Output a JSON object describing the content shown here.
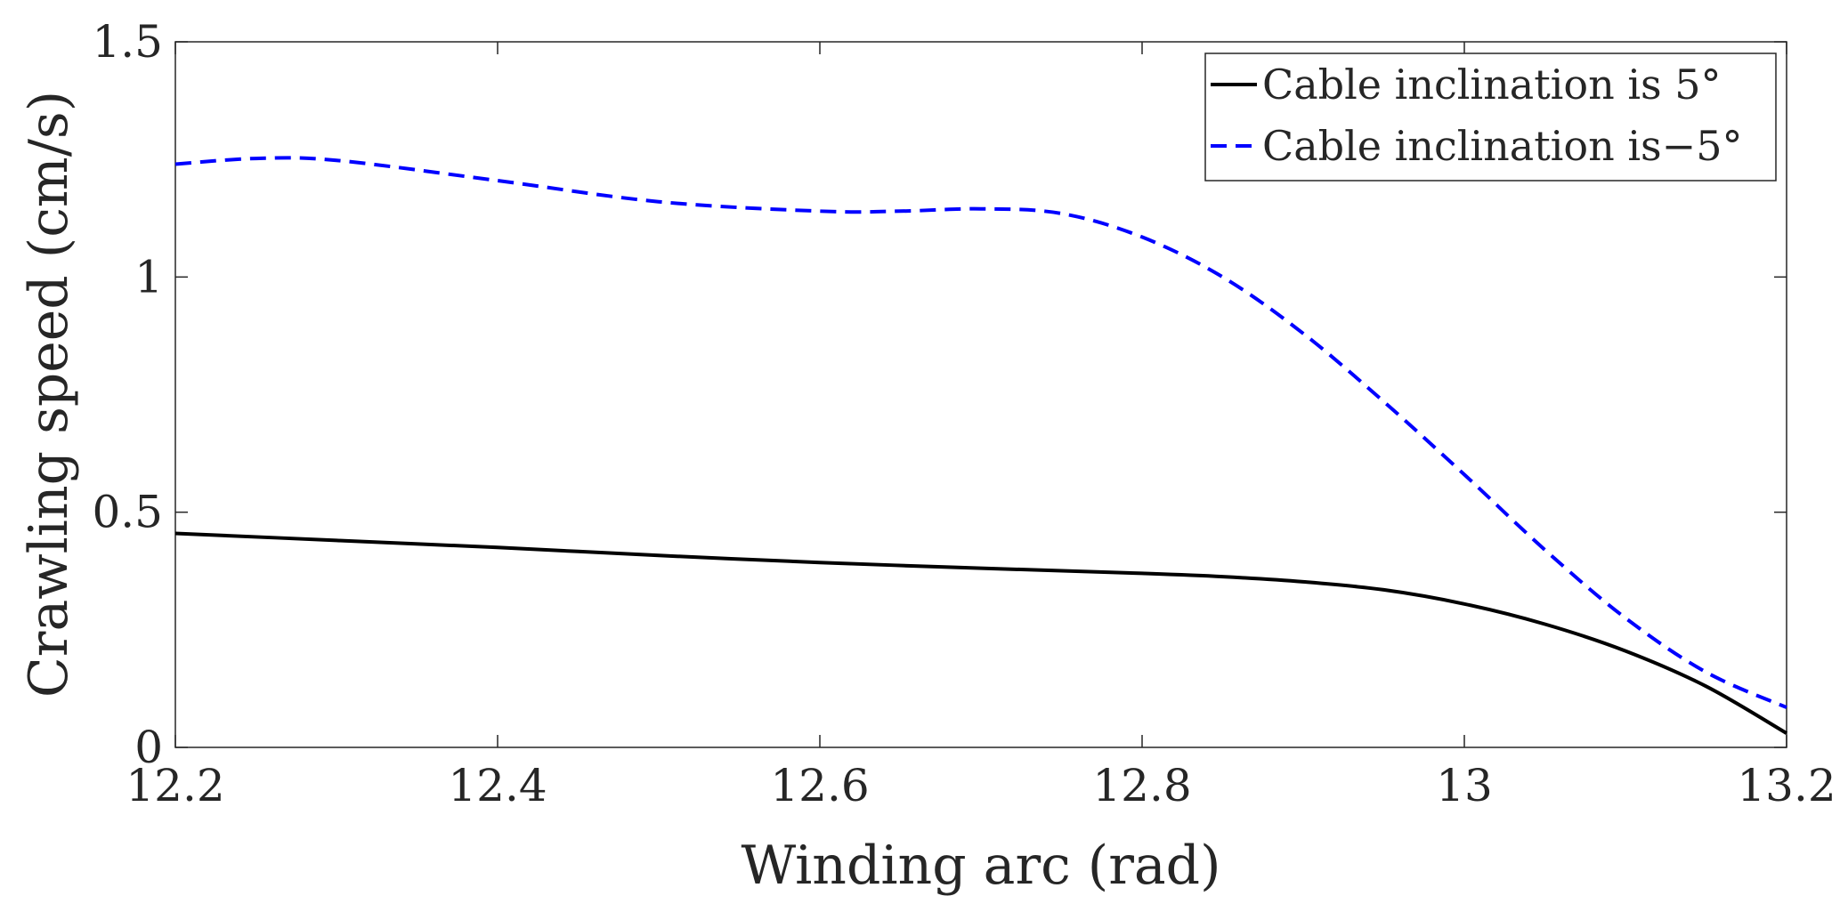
{
  "chart_data": {
    "type": "line",
    "title": "",
    "xlabel": "Winding arc (rad)",
    "ylabel": "Crawling speed (cm/s)",
    "xlim": [
      12.2,
      13.2
    ],
    "ylim": [
      0,
      1.5
    ],
    "xticks": [
      12.2,
      12.4,
      12.6,
      12.8,
      13,
      13.2
    ],
    "xtick_labels": [
      "12.2",
      "12.4",
      "12.6",
      "12.8",
      "13",
      "13.2"
    ],
    "yticks": [
      0,
      0.5,
      1,
      1.5
    ],
    "ytick_labels": [
      "0",
      "0.5",
      "1",
      "1.5"
    ],
    "grid": false,
    "legend_position": "top-right",
    "series": [
      {
        "name": "Cable inclination is 5°",
        "color": "#000000",
        "style": "solid",
        "x": [
          12.2,
          12.3,
          12.4,
          12.5,
          12.6,
          12.7,
          12.8,
          12.85,
          12.9,
          12.95,
          13.0,
          13.05,
          13.1,
          13.15,
          13.2
        ],
        "y": [
          0.455,
          0.44,
          0.425,
          0.408,
          0.393,
          0.381,
          0.37,
          0.363,
          0.352,
          0.335,
          0.305,
          0.262,
          0.205,
          0.13,
          0.03
        ]
      },
      {
        "name": "Cable inclination is−5°",
        "color": "#0000ff",
        "style": "dashed",
        "x": [
          12.2,
          12.25,
          12.3,
          12.4,
          12.5,
          12.6,
          12.65,
          12.7,
          12.75,
          12.8,
          12.85,
          12.9,
          12.95,
          13.0,
          13.05,
          13.1,
          13.15,
          13.2
        ],
        "y": [
          1.24,
          1.252,
          1.248,
          1.205,
          1.16,
          1.14,
          1.14,
          1.145,
          1.135,
          1.085,
          1.0,
          0.88,
          0.735,
          0.58,
          0.42,
          0.275,
          0.16,
          0.085
        ]
      }
    ]
  }
}
